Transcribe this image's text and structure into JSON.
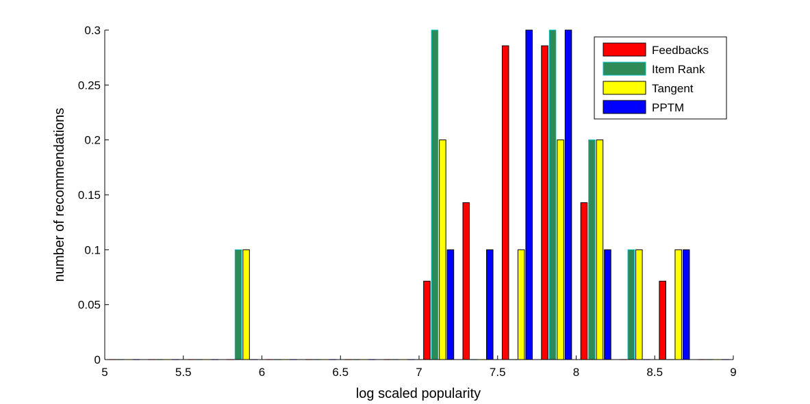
{
  "chart_data": {
    "type": "bar",
    "title": "",
    "xlabel": "log scaled popularity",
    "ylabel": "number of recommendations",
    "xlim": [
      5,
      9
    ],
    "ylim": [
      0,
      0.3
    ],
    "x_ticks": [
      "5",
      "5.5",
      "6",
      "6.5",
      "7",
      "7.5",
      "8",
      "8.5",
      "9"
    ],
    "y_ticks": [
      "0",
      "0.05",
      "0.1",
      "0.15",
      "0.2",
      "0.25",
      "0.3"
    ],
    "grid": false,
    "legend_position": "top-right",
    "bin_centers": [
      5.125,
      5.375,
      5.625,
      5.875,
      6.125,
      6.375,
      6.625,
      6.875,
      7.125,
      7.375,
      7.625,
      7.875,
      8.125,
      8.375,
      8.625,
      8.875
    ],
    "series": [
      {
        "name": "Feedbacks",
        "color": "#ff0000",
        "values": [
          0,
          0,
          0,
          0,
          0,
          0,
          0,
          0,
          0.0714,
          0.1429,
          0.2857,
          0.2857,
          0.1429,
          0,
          0.0714,
          0
        ]
      },
      {
        "name": "Item Rank",
        "color": "#2e8b57",
        "edge": "#00bcbc",
        "values": [
          0,
          0,
          0,
          0.1,
          0,
          0,
          0,
          0,
          0.3,
          0,
          0,
          0.3,
          0.2,
          0.1,
          0,
          0
        ]
      },
      {
        "name": "Tangent",
        "color": "#ffff00",
        "values": [
          0,
          0,
          0,
          0.1,
          0,
          0,
          0,
          0,
          0.2,
          0,
          0.1,
          0.2,
          0.2,
          0.1,
          0.1,
          0
        ]
      },
      {
        "name": "PPTM",
        "color": "#0000ff",
        "values": [
          0,
          0,
          0,
          0,
          0,
          0,
          0,
          0,
          0.1,
          0.1,
          0.3,
          0.3,
          0.1,
          0,
          0.1,
          0
        ]
      }
    ]
  }
}
